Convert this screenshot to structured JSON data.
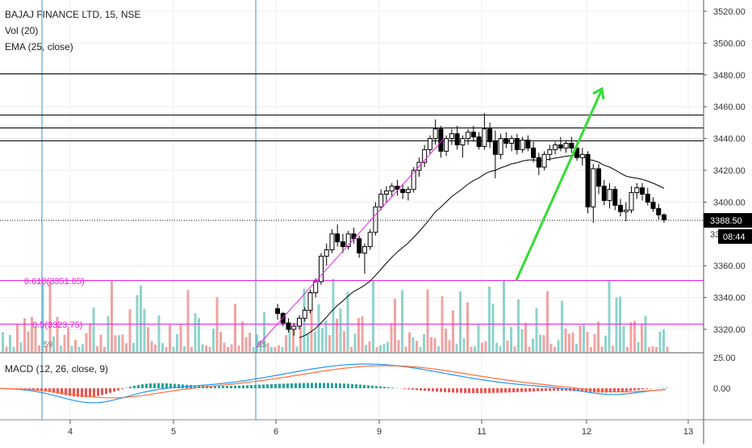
{
  "chart_data": {
    "type": "candlestick",
    "title": "BAJAJ FINANCE LTD, 15, NSE",
    "indicators": [
      "Vol (20)",
      "EMA (25, close)"
    ],
    "macd_label": "MACD (12, 26, close, 9)",
    "x_tick_labels": [
      "4",
      "5",
      "6",
      "9",
      "11",
      "12",
      "13"
    ],
    "price_axis": {
      "ticks": [
        3520,
        3500,
        3480,
        3460,
        3440,
        3420,
        3400,
        3360,
        3340,
        3320
      ],
      "tick_labels": [
        "3520.00",
        "3500.00",
        "3480.00",
        "3460.00",
        "3440.00",
        "3420.00",
        "3400.00",
        "3360.00",
        "3340.00",
        "3320.00"
      ],
      "ylim": [
        3313,
        3523
      ]
    },
    "macd_axis": {
      "tick_labels": [
        "25.00",
        "0.00"
      ]
    },
    "last_price": {
      "value": 3388.5,
      "label": "3388.50",
      "countdown": "08:44",
      "hidden_tick": "3380.00"
    },
    "horizontal_levels": [
      3481,
      3455,
      3447,
      3439
    ],
    "fib_levels": [
      {
        "label": "0.618(3351.05)",
        "value": 3351.05,
        "color": "#e91ee0"
      },
      {
        "label": "0.5(3323.75)",
        "value": 3323.75,
        "color": "#e91ee0"
      }
    ],
    "volume_markers": [
      "59",
      "55"
    ],
    "colors": {
      "up": "#26a69a",
      "down": "#ef5350",
      "candle": "#000000",
      "fib": "#e91ee0",
      "arrow": "#33dd33",
      "vline": "#3d8fd6",
      "macd": "#2196f3",
      "signal": "#ff6d3a"
    },
    "candles": [
      [
        3333,
        3336,
        3326,
        3330
      ],
      [
        3330,
        3331,
        3322,
        3324
      ],
      [
        3324,
        3327,
        3318,
        3320
      ],
      [
        3320,
        3324,
        3316,
        3322
      ],
      [
        3322,
        3329,
        3320,
        3327
      ],
      [
        3327,
        3334,
        3325,
        3332
      ],
      [
        3332,
        3345,
        3330,
        3343
      ],
      [
        3343,
        3352,
        3340,
        3350
      ],
      [
        3350,
        3368,
        3348,
        3366
      ],
      [
        3366,
        3374,
        3360,
        3370
      ],
      [
        3370,
        3383,
        3368,
        3380
      ],
      [
        3380,
        3386,
        3372,
        3375
      ],
      [
        3375,
        3380,
        3368,
        3372
      ],
      [
        3372,
        3382,
        3370,
        3380
      ],
      [
        3380,
        3384,
        3374,
        3377
      ],
      [
        3377,
        3379,
        3365,
        3368
      ],
      [
        3368,
        3374,
        3355,
        3372
      ],
      [
        3372,
        3383,
        3370,
        3381
      ],
      [
        3381,
        3400,
        3379,
        3397
      ],
      [
        3397,
        3408,
        3395,
        3405
      ],
      [
        3405,
        3410,
        3400,
        3407
      ],
      [
        3407,
        3412,
        3403,
        3410
      ],
      [
        3410,
        3414,
        3404,
        3408
      ],
      [
        3408,
        3411,
        3402,
        3406
      ],
      [
        3406,
        3410,
        3401,
        3408
      ],
      [
        3408,
        3422,
        3406,
        3420
      ],
      [
        3420,
        3428,
        3416,
        3425
      ],
      [
        3425,
        3436,
        3422,
        3433
      ],
      [
        3433,
        3442,
        3430,
        3440
      ],
      [
        3440,
        3452,
        3436,
        3446
      ],
      [
        3446,
        3448,
        3428,
        3432
      ],
      [
        3432,
        3442,
        3429,
        3440
      ],
      [
        3440,
        3446,
        3436,
        3443
      ],
      [
        3443,
        3448,
        3433,
        3436
      ],
      [
        3436,
        3442,
        3428,
        3440
      ],
      [
        3440,
        3446,
        3436,
        3444
      ],
      [
        3444,
        3448,
        3438,
        3441
      ],
      [
        3441,
        3444,
        3433,
        3435
      ],
      [
        3435,
        3456,
        3433,
        3446
      ],
      [
        3446,
        3450,
        3434,
        3438
      ],
      [
        3438,
        3445,
        3415,
        3430
      ],
      [
        3430,
        3443,
        3427,
        3440
      ],
      [
        3440,
        3444,
        3434,
        3437
      ],
      [
        3437,
        3442,
        3432,
        3440
      ],
      [
        3440,
        3443,
        3430,
        3433
      ],
      [
        3433,
        3441,
        3431,
        3439
      ],
      [
        3439,
        3442,
        3432,
        3434
      ],
      [
        3434,
        3438,
        3425,
        3428
      ],
      [
        3428,
        3431,
        3417,
        3422
      ],
      [
        3422,
        3432,
        3420,
        3430
      ],
      [
        3430,
        3436,
        3426,
        3433
      ],
      [
        3433,
        3438,
        3430,
        3436
      ],
      [
        3436,
        3441,
        3432,
        3434
      ],
      [
        3434,
        3439,
        3431,
        3437
      ],
      [
        3437,
        3441,
        3431,
        3434
      ],
      [
        3434,
        3438,
        3426,
        3428
      ],
      [
        3428,
        3434,
        3423,
        3430
      ],
      [
        3430,
        3432,
        3393,
        3397
      ],
      [
        3397,
        3424,
        3387,
        3421
      ],
      [
        3421,
        3424,
        3405,
        3410
      ],
      [
        3410,
        3414,
        3398,
        3401
      ],
      [
        3401,
        3412,
        3396,
        3408
      ],
      [
        3408,
        3410,
        3395,
        3398
      ],
      [
        3398,
        3402,
        3391,
        3394
      ],
      [
        3394,
        3400,
        3388,
        3395
      ],
      [
        3395,
        3410,
        3393,
        3406
      ],
      [
        3406,
        3412,
        3402,
        3409
      ],
      [
        3409,
        3412,
        3401,
        3405
      ],
      [
        3405,
        3409,
        3398,
        3400
      ],
      [
        3400,
        3403,
        3394,
        3396
      ],
      [
        3396,
        3399,
        3389,
        3392
      ],
      [
        3392,
        3393,
        3387,
        3389
      ]
    ]
  }
}
